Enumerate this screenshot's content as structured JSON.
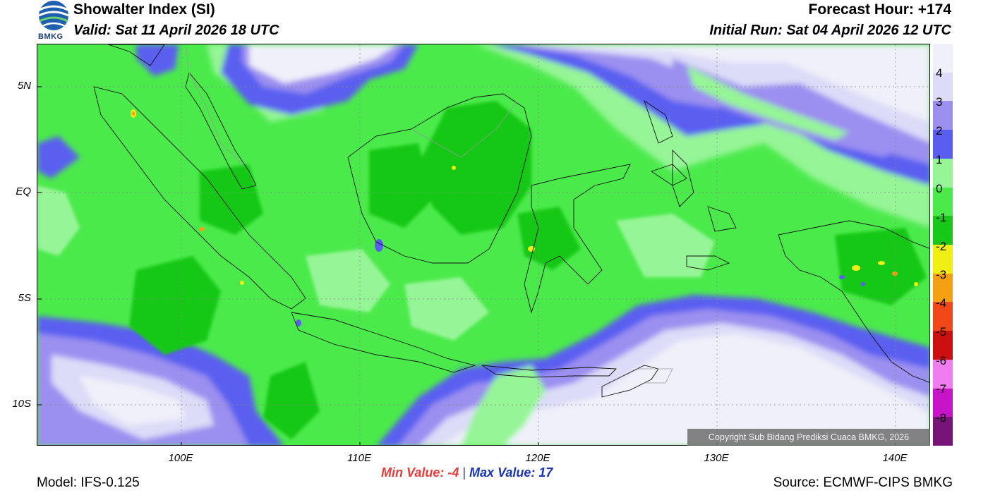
{
  "header": {
    "title": "Showalter Index (SI)",
    "valid": "Valid: Sat 11 April 2026 18 UTC",
    "forecast_hour": "Forecast Hour: +174",
    "initial_run": "Initial Run: Sat 04 April 2026 12 UTC",
    "logo_text": "BMKG"
  },
  "map": {
    "y_ticks": [
      "5N",
      "EQ",
      "5S",
      "10S"
    ],
    "x_ticks": [
      "100E",
      "110E",
      "120E",
      "130E",
      "140E"
    ],
    "copyright": "Copyright Sub Bidang Prediksi Cuaca BMKG, 2026"
  },
  "legend": {
    "levels": [
      "4",
      "3",
      "2",
      "1",
      "0",
      "-1",
      "-2",
      "-3",
      "-4",
      "-5",
      "-6",
      "-7",
      "-8"
    ],
    "colors": [
      "#f0f0fa",
      "#dcdcf8",
      "#9b8ff0",
      "#5a5ef0",
      "#96f596",
      "#4bea4b",
      "#18c818",
      "#f0ee14",
      "#f5a012",
      "#f04818",
      "#cc1010",
      "#f07cf0",
      "#c814c8",
      "#781478"
    ]
  },
  "stats": {
    "min_label": "Min Value:  -4",
    "separator": "|",
    "max_label": "Max Value:  17"
  },
  "footer": {
    "model": "Model: IFS-0.125",
    "source": "Source: ECMWF-CIPS BMKG"
  }
}
